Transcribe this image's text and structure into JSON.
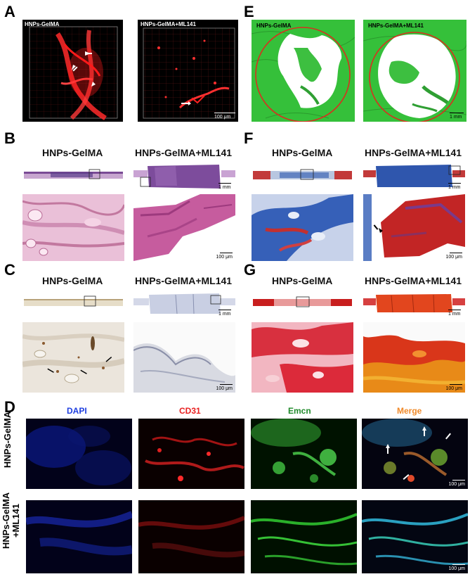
{
  "panels": {
    "A": {
      "letter": "A",
      "left_label": "HNPs-GelMA",
      "right_label": "HNPs-GelMA+ML141",
      "scale": "100 μm"
    },
    "B": {
      "letter": "B",
      "left_title": "HNPs-GelMA",
      "right_title": "HNPs-GelMA+ML141",
      "scale_overview": "1 mm",
      "scale_zoom": "100 μm"
    },
    "C": {
      "letter": "C",
      "left_title": "HNPs-GelMA",
      "right_title": "HNPs-GelMA+ML141",
      "scale_overview": "1 mm",
      "scale_zoom": "100 μm"
    },
    "D": {
      "letter": "D",
      "channels": [
        "DAPI",
        "CD31",
        "Emcn",
        "Merge"
      ],
      "row1_label": "HNPs-GelMA",
      "row2_label_line1": "HNPs-GelMA",
      "row2_label_line2": "+ML141",
      "scale": "100 μm",
      "channel_colors": [
        "#1f3fe0",
        "#e82020",
        "#1f8a2a",
        "#f08a2a"
      ]
    },
    "E": {
      "letter": "E",
      "left_label": "HNPs-GelMA",
      "right_label": "HNPs-GelMA+ML141",
      "scale": "1 mm"
    },
    "F": {
      "letter": "F",
      "left_title": "HNPs-GelMA",
      "right_title": "HNPs-GelMA+ML141",
      "scale_overview": "1 mm",
      "scale_zoom": "100 μm"
    },
    "G": {
      "letter": "G",
      "left_title": "HNPs-GelMA",
      "right_title": "HNPs-GelMA+ML141",
      "scale_overview": "1 mm",
      "scale_zoom": "100 μm"
    }
  }
}
